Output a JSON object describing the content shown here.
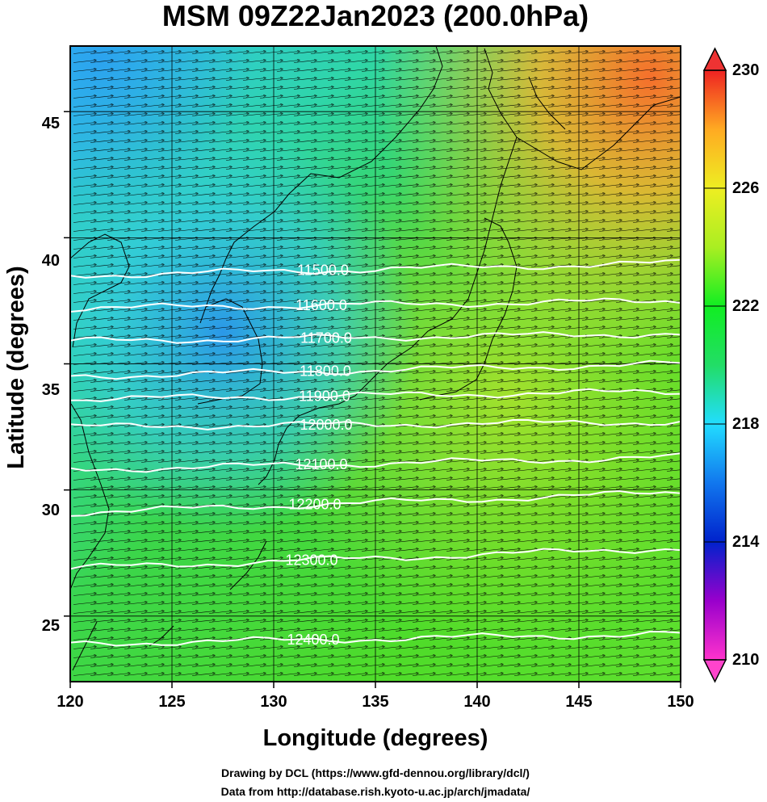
{
  "title": "MSM 09Z22Jan2023 (200.0hPa)",
  "ylabel": "Latitude  (degrees)",
  "xlabel": "Longitude (degrees)",
  "credits": [
    "Drawing by DCL (https://www.gfd-dennou.org/library/dcl/)",
    "Data from http://database.rish.kyoto-u.ac.jp/arch/jmadata/"
  ],
  "x_ticks": [
    "120",
    "125",
    "130",
    "135",
    "140",
    "145",
    "150"
  ],
  "y_ticks": [
    "45",
    "40",
    "35",
    "30",
    "25"
  ],
  "colorbar_ticks": [
    "230",
    "226",
    "222",
    "218",
    "214",
    "210"
  ],
  "contour_labels": [
    "11500.0",
    "11600.0",
    "11700.0",
    "11800.0",
    "11900.0",
    "12000.0",
    "12100.0",
    "12200.0",
    "12300.0",
    "12400.0"
  ],
  "chart_data": {
    "type": "heatmap",
    "title": "MSM 09Z22Jan2023 (200.0hPa)",
    "xlabel": "Longitude (degrees)",
    "ylabel": "Latitude  (degrees)",
    "xlim": [
      120,
      150
    ],
    "ylim": [
      22.4,
      47.6
    ],
    "color_scale": {
      "min": 210,
      "max": 230,
      "ticks": [
        210,
        214,
        218,
        222,
        226,
        230
      ],
      "colors": [
        "#ff33cc",
        "#9900cc",
        "#0022cc",
        "#1177ee",
        "#22ddff",
        "#22dd66",
        "#11ee22",
        "#aaee22",
        "#eeee22",
        "#ffaa22",
        "#ff5522",
        "#ee2222"
      ]
    },
    "temperature_field_estimate": [
      {
        "lon": 121,
        "lat": 46.5,
        "value": 218.5
      },
      {
        "lon": 127,
        "lat": 37.5,
        "value": 218.0
      },
      {
        "lon": 130,
        "lat": 38.5,
        "value": 219.0
      },
      {
        "lon": 122,
        "lat": 30,
        "value": 221.5
      },
      {
        "lon": 135,
        "lat": 30,
        "value": 222.0
      },
      {
        "lon": 140,
        "lat": 34,
        "value": 223.0
      },
      {
        "lon": 142,
        "lat": 45,
        "value": 226.5
      },
      {
        "lon": 149,
        "lat": 46,
        "value": 228.0
      },
      {
        "lon": 149,
        "lat": 40,
        "value": 225.5
      },
      {
        "lon": 145,
        "lat": 25,
        "value": 222.0
      }
    ],
    "geopotential_height_contours": [
      {
        "value": 11500,
        "label": "11500.0",
        "lat_at_120": 38.5,
        "lat_at_150": 39.0
      },
      {
        "value": 11600,
        "label": "11600.0",
        "lat_at_120": 37.2,
        "lat_at_150": 37.5
      },
      {
        "value": 11700,
        "label": "11700.0",
        "lat_at_120": 35.9,
        "lat_at_150": 36.2
      },
      {
        "value": 11800,
        "label": "11800.0",
        "lat_at_120": 34.5,
        "lat_at_150": 35.0
      },
      {
        "value": 11900,
        "label": "11900.0",
        "lat_at_120": 33.6,
        "lat_at_150": 33.9
      },
      {
        "value": 12000,
        "label": "12000.0",
        "lat_at_120": 32.5,
        "lat_at_150": 32.7
      },
      {
        "value": 12100,
        "label": "12100.0",
        "lat_at_120": 30.8,
        "lat_at_150": 31.3
      },
      {
        "value": 12200,
        "label": "12200.0",
        "lat_at_120": 29.1,
        "lat_at_150": 29.9
      },
      {
        "value": 12300,
        "label": "12300.0",
        "lat_at_120": 26.9,
        "lat_at_150": 27.7
      },
      {
        "value": 12400,
        "label": "12400.0",
        "lat_at_120": 23.9,
        "lat_at_150": 24.3
      }
    ],
    "wind": {
      "direction": "westerly (toward east)",
      "description": "uniform eastward wind vectors across domain"
    }
  }
}
